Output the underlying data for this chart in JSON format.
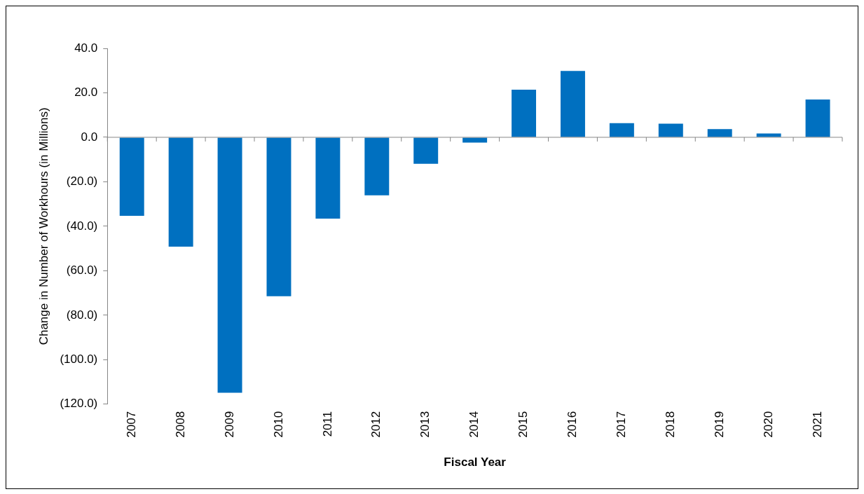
{
  "chart_data": {
    "type": "bar",
    "xlabel": "Fiscal Year",
    "ylabel": "Change in Number of Workhours (in Millions)",
    "categories": [
      "2007",
      "2008",
      "2009",
      "2010",
      "2011",
      "2012",
      "2013",
      "2014",
      "2015",
      "2016",
      "2017",
      "2018",
      "2019",
      "2020",
      "2021"
    ],
    "values": [
      -35.3,
      -49.2,
      -114.9,
      -71.5,
      -36.6,
      -26.1,
      -11.9,
      -2.4,
      21.4,
      29.8,
      6.4,
      6.1,
      3.7,
      1.7,
      17.0
    ],
    "color": "#0070c0",
    "ylim": [
      -120,
      40
    ],
    "yticks": [
      {
        "value": -120,
        "label": "(120.0)"
      },
      {
        "value": -100,
        "label": "(100.0)"
      },
      {
        "value": -80,
        "label": "(80.0)"
      },
      {
        "value": -60,
        "label": "(60.0)"
      },
      {
        "value": -40,
        "label": "(40.0)"
      },
      {
        "value": -20,
        "label": "(20.0)"
      },
      {
        "value": 0,
        "label": "0.0"
      },
      {
        "value": 20,
        "label": "20.0"
      },
      {
        "value": 40,
        "label": "40.0"
      }
    ],
    "legend": false
  }
}
